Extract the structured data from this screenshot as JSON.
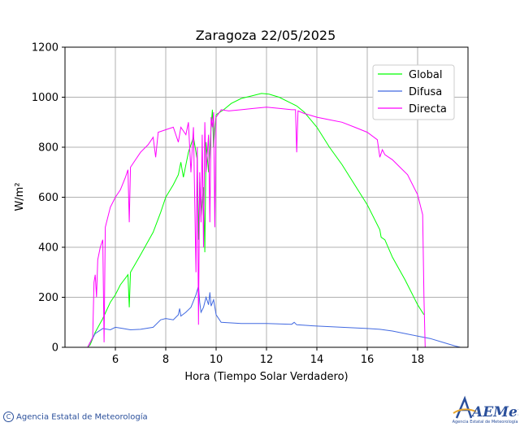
{
  "chart_data": {
    "type": "line",
    "title": "Zaragoza 22/05/2025",
    "xlabel": "Hora (Tiempo Solar Verdadero)",
    "ylabel": "W/m²",
    "xlim": [
      4,
      20
    ],
    "ylim": [
      0,
      1200
    ],
    "xticks": [
      "6",
      "8",
      "10",
      "12",
      "14",
      "16",
      "18"
    ],
    "yticks": [
      "0",
      "200",
      "400",
      "600",
      "800",
      "1000",
      "1200"
    ],
    "grid": true,
    "legend": "top-right",
    "series": [
      {
        "name": "Global",
        "color": "#00ff00",
        "points": [
          [
            4.0,
            0
          ],
          [
            4.9,
            0
          ],
          [
            5.0,
            10
          ],
          [
            5.2,
            60
          ],
          [
            5.5,
            115
          ],
          [
            5.8,
            180
          ],
          [
            6.0,
            210
          ],
          [
            6.2,
            250
          ],
          [
            6.5,
            290
          ],
          [
            6.55,
            160
          ],
          [
            6.6,
            300
          ],
          [
            7.0,
            370
          ],
          [
            7.5,
            460
          ],
          [
            7.8,
            540
          ],
          [
            8.0,
            600
          ],
          [
            8.3,
            650
          ],
          [
            8.5,
            690
          ],
          [
            8.6,
            740
          ],
          [
            8.7,
            680
          ],
          [
            8.9,
            780
          ],
          [
            9.1,
            840
          ],
          [
            9.25,
            750
          ],
          [
            9.3,
            430
          ],
          [
            9.35,
            660
          ],
          [
            9.4,
            520
          ],
          [
            9.5,
            640
          ],
          [
            9.55,
            380
          ],
          [
            9.6,
            820
          ],
          [
            9.7,
            700
          ],
          [
            9.8,
            880
          ],
          [
            9.85,
            950
          ],
          [
            9.9,
            800
          ],
          [
            9.95,
            870
          ],
          [
            10.0,
            930
          ],
          [
            10.3,
            950
          ],
          [
            10.6,
            975
          ],
          [
            11.0,
            995
          ],
          [
            11.4,
            1005
          ],
          [
            11.8,
            1015
          ],
          [
            12.1,
            1012
          ],
          [
            12.5,
            1000
          ],
          [
            13.0,
            975
          ],
          [
            13.2,
            965
          ],
          [
            13.5,
            940
          ],
          [
            14.0,
            880
          ],
          [
            14.5,
            800
          ],
          [
            15.0,
            730
          ],
          [
            15.5,
            650
          ],
          [
            16.0,
            570
          ],
          [
            16.5,
            470
          ],
          [
            16.55,
            440
          ],
          [
            16.7,
            430
          ],
          [
            17.0,
            360
          ],
          [
            17.5,
            270
          ],
          [
            18.0,
            170
          ],
          [
            18.25,
            130
          ]
        ]
      },
      {
        "name": "Difusa",
        "color": "#4169e1",
        "points": [
          [
            4.0,
            0
          ],
          [
            4.9,
            0
          ],
          [
            5.0,
            20
          ],
          [
            5.2,
            55
          ],
          [
            5.5,
            75
          ],
          [
            5.8,
            70
          ],
          [
            6.0,
            80
          ],
          [
            6.3,
            75
          ],
          [
            6.6,
            70
          ],
          [
            7.0,
            72
          ],
          [
            7.5,
            80
          ],
          [
            7.8,
            110
          ],
          [
            8.0,
            115
          ],
          [
            8.3,
            110
          ],
          [
            8.5,
            130
          ],
          [
            8.55,
            155
          ],
          [
            8.6,
            125
          ],
          [
            8.8,
            140
          ],
          [
            9.0,
            160
          ],
          [
            9.2,
            210
          ],
          [
            9.3,
            245
          ],
          [
            9.35,
            180
          ],
          [
            9.4,
            140
          ],
          [
            9.5,
            160
          ],
          [
            9.6,
            200
          ],
          [
            9.7,
            170
          ],
          [
            9.75,
            220
          ],
          [
            9.8,
            165
          ],
          [
            9.9,
            190
          ],
          [
            10.0,
            130
          ],
          [
            10.2,
            100
          ],
          [
            11.0,
            95
          ],
          [
            12.0,
            95
          ],
          [
            13.0,
            92
          ],
          [
            13.1,
            100
          ],
          [
            13.2,
            90
          ],
          [
            14.0,
            85
          ],
          [
            15.0,
            80
          ],
          [
            16.0,
            75
          ],
          [
            16.5,
            72
          ],
          [
            17.0,
            65
          ],
          [
            17.5,
            55
          ],
          [
            18.0,
            45
          ],
          [
            18.5,
            35
          ],
          [
            19.0,
            20
          ],
          [
            19.5,
            5
          ],
          [
            19.7,
            0
          ],
          [
            20.0,
            0
          ]
        ]
      },
      {
        "name": "Directa",
        "color": "#ff00ff",
        "points": [
          [
            4.0,
            0
          ],
          [
            4.9,
            0
          ],
          [
            5.1,
            40
          ],
          [
            5.15,
            260
          ],
          [
            5.2,
            290
          ],
          [
            5.25,
            200
          ],
          [
            5.3,
            350
          ],
          [
            5.4,
            400
          ],
          [
            5.5,
            430
          ],
          [
            5.55,
            20
          ],
          [
            5.6,
            480
          ],
          [
            5.8,
            560
          ],
          [
            6.0,
            600
          ],
          [
            6.2,
            630
          ],
          [
            6.4,
            680
          ],
          [
            6.5,
            710
          ],
          [
            6.55,
            500
          ],
          [
            6.6,
            720
          ],
          [
            6.8,
            750
          ],
          [
            7.0,
            780
          ],
          [
            7.3,
            810
          ],
          [
            7.5,
            840
          ],
          [
            7.6,
            760
          ],
          [
            7.7,
            860
          ],
          [
            8.0,
            870
          ],
          [
            8.3,
            880
          ],
          [
            8.5,
            820
          ],
          [
            8.6,
            880
          ],
          [
            8.8,
            850
          ],
          [
            8.9,
            900
          ],
          [
            9.0,
            700
          ],
          [
            9.1,
            880
          ],
          [
            9.2,
            300
          ],
          [
            9.25,
            800
          ],
          [
            9.3,
            90
          ],
          [
            9.35,
            700
          ],
          [
            9.4,
            500
          ],
          [
            9.45,
            850
          ],
          [
            9.5,
            400
          ],
          [
            9.55,
            900
          ],
          [
            9.6,
            700
          ],
          [
            9.7,
            850
          ],
          [
            9.75,
            500
          ],
          [
            9.8,
            920
          ],
          [
            9.85,
            880
          ],
          [
            9.9,
            940
          ],
          [
            9.95,
            480
          ],
          [
            10.0,
            920
          ],
          [
            10.2,
            950
          ],
          [
            10.5,
            945
          ],
          [
            11.0,
            950
          ],
          [
            11.5,
            955
          ],
          [
            12.0,
            960
          ],
          [
            12.5,
            955
          ],
          [
            13.0,
            950
          ],
          [
            13.15,
            950
          ],
          [
            13.2,
            780
          ],
          [
            13.25,
            945
          ],
          [
            13.5,
            935
          ],
          [
            14.0,
            920
          ],
          [
            14.5,
            910
          ],
          [
            15.0,
            900
          ],
          [
            15.5,
            880
          ],
          [
            16.0,
            860
          ],
          [
            16.4,
            830
          ],
          [
            16.5,
            760
          ],
          [
            16.6,
            790
          ],
          [
            16.7,
            770
          ],
          [
            17.0,
            750
          ],
          [
            17.3,
            720
          ],
          [
            17.6,
            690
          ],
          [
            18.0,
            610
          ],
          [
            18.2,
            530
          ],
          [
            18.25,
            200
          ],
          [
            18.3,
            0
          ],
          [
            20.0,
            0
          ]
        ]
      }
    ]
  },
  "footer": {
    "copyright_symbol": "C",
    "agency": "Agencia Estatal de Meteorología"
  },
  "logo": {
    "text": "AEMet",
    "subtext": "Agencia Estatal de Meteorología"
  }
}
